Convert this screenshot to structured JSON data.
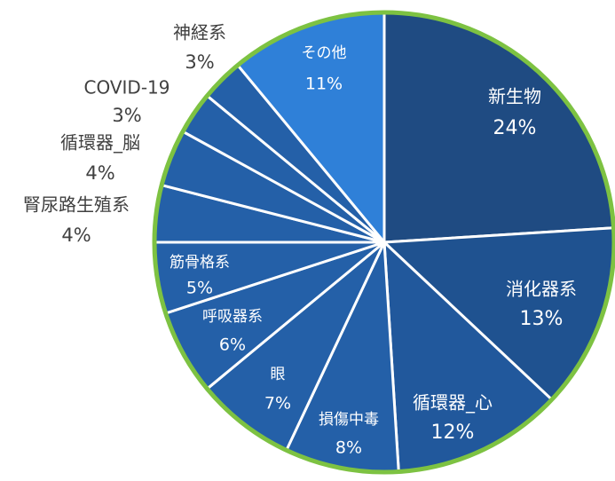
{
  "chart_data": {
    "type": "pie",
    "categories": [
      "新生物",
      "消化器系",
      "循環器_心",
      "損傷中毒",
      "眼",
      "呼吸器系",
      "筋骨格系",
      "腎尿路生殖系",
      "循環器_脳",
      "COVID-19",
      "神経系",
      "その他"
    ],
    "values": [
      24,
      13,
      12,
      8,
      7,
      6,
      5,
      4,
      4,
      3,
      3,
      11
    ],
    "value_labels": [
      "24%",
      "13%",
      "12%",
      "8%",
      "7%",
      "6%",
      "5%",
      "4%",
      "4%",
      "3%",
      "3%",
      "11%"
    ],
    "colors": [
      "#1f4b82",
      "#1f5290",
      "#21589c",
      "#2460a8",
      "#2460a8",
      "#2460a8",
      "#2460a8",
      "#2460a8",
      "#2460a8",
      "#2460a8",
      "#2460a8",
      "#2f80d8"
    ],
    "outline_color": "#7dc242"
  }
}
